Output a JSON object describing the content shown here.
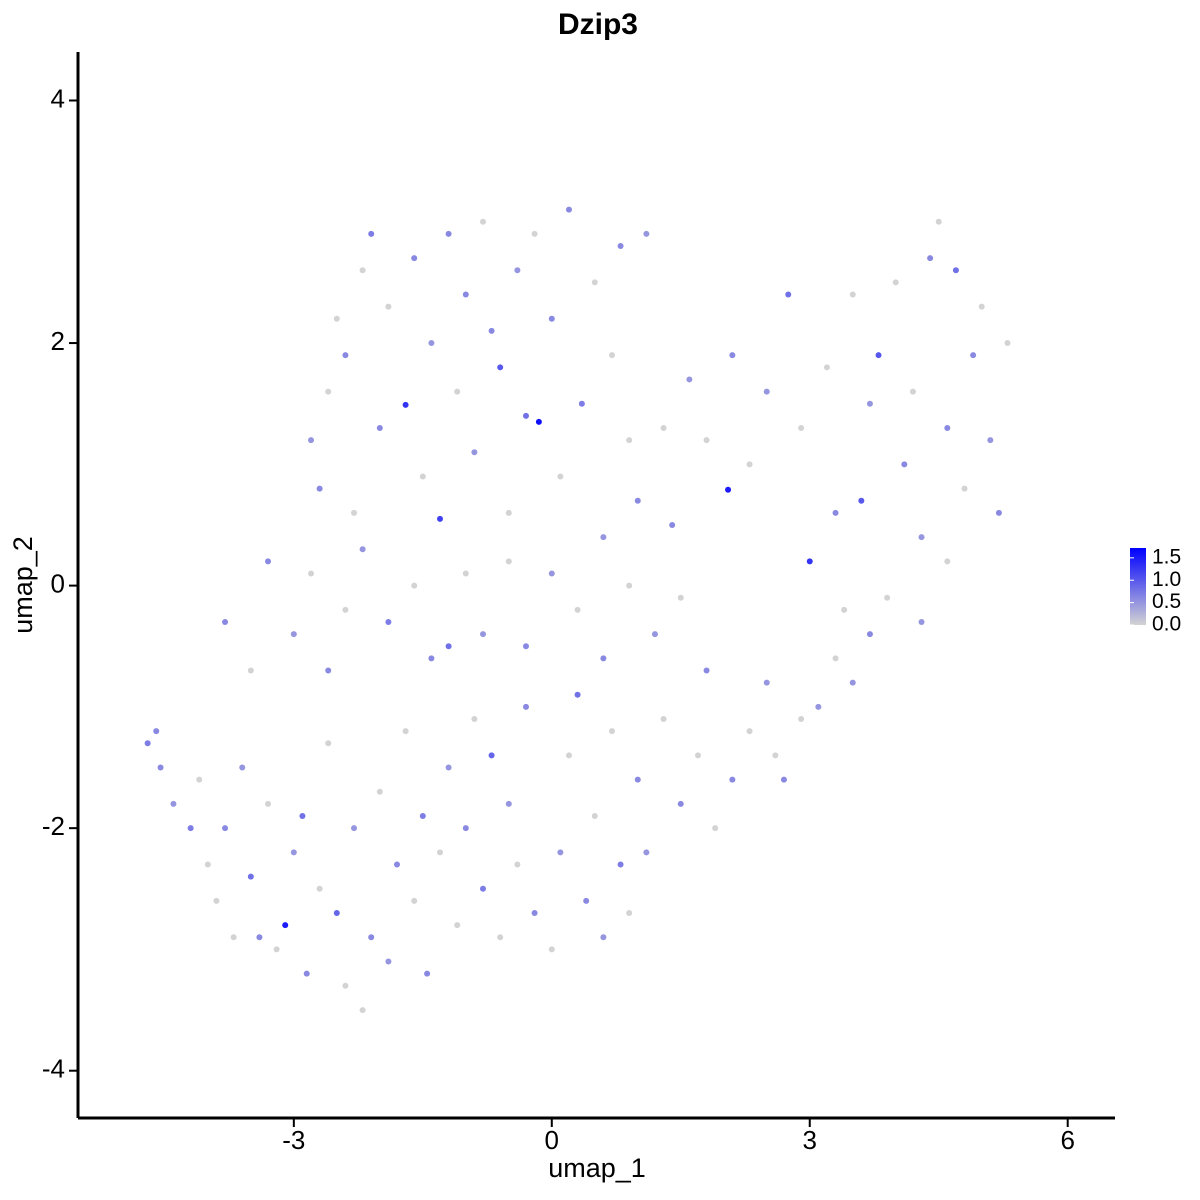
{
  "chart_data": {
    "type": "scatter",
    "title": "Dzip3",
    "x_label": "umap_1",
    "y_label": "umap_2",
    "xlim": [
      -5.51,
      6.55
    ],
    "ylim": [
      -4.39,
      4.4
    ],
    "xticks": [
      -3,
      0,
      3,
      6
    ],
    "yticks": [
      -4,
      -2,
      0,
      2,
      4
    ],
    "colorbar": {
      "lim": [
        0,
        1.72
      ],
      "colors": [
        "#d3d3d3",
        "#0000ff"
      ],
      "ticks": [
        {
          "value": 0,
          "label": "0.0"
        },
        {
          "value": 0.5,
          "label": "0.5"
        },
        {
          "value": 1,
          "label": "1.0"
        },
        {
          "value": 1.5,
          "label": "1.5"
        }
      ]
    },
    "x": [
      -4.7,
      -4.6,
      -4.55,
      -4.4,
      -4.2,
      -4.1,
      -4.0,
      -3.9,
      -3.8,
      -3.7,
      -3.6,
      -3.5,
      -3.4,
      -3.3,
      -3.2,
      -3.1,
      -3.0,
      -2.9,
      -2.85,
      -2.7,
      -2.6,
      -2.5,
      -2.4,
      -2.3,
      -2.2,
      -2.1,
      -2.0,
      -1.9,
      -1.8,
      -1.7,
      -1.6,
      -1.5,
      -1.45,
      -1.3,
      -1.2,
      -1.1,
      -1.0,
      -0.9,
      -0.8,
      -0.7,
      -0.6,
      -0.5,
      -0.4,
      -0.3,
      -0.2,
      0.0,
      0.1,
      0.2,
      0.3,
      0.4,
      0.5,
      0.6,
      0.7,
      0.8,
      0.9,
      1.0,
      1.1,
      1.3,
      1.5,
      1.7,
      1.9,
      2.1,
      2.3,
      2.5,
      2.6,
      2.7,
      2.9,
      3.1,
      3.3,
      3.5,
      3.7,
      -3.8,
      -3.5,
      -3.3,
      -3.0,
      -2.8,
      -2.6,
      -2.4,
      -2.2,
      -1.9,
      -1.6,
      -1.4,
      -1.2,
      -1.0,
      -0.8,
      -0.5,
      -0.3,
      0.0,
      0.3,
      0.6,
      0.9,
      1.2,
      1.5,
      1.8,
      -2.8,
      -2.7,
      -2.6,
      -2.5,
      -2.4,
      -2.3,
      -2.2,
      -2.1,
      -2.0,
      -1.9,
      -1.7,
      -1.6,
      -1.5,
      -1.4,
      -1.3,
      -1.2,
      -1.1,
      -1.0,
      -0.9,
      -0.8,
      -0.7,
      -0.6,
      -0.5,
      -0.4,
      -0.3,
      -0.2,
      -0.15,
      0.0,
      0.1,
      0.2,
      0.35,
      0.5,
      0.6,
      0.7,
      0.8,
      0.9,
      1.0,
      1.1,
      1.3,
      1.4,
      1.6,
      1.8,
      2.05,
      2.1,
      2.3,
      2.5,
      2.75,
      2.9,
      3.0,
      3.2,
      3.3,
      3.5,
      3.6,
      3.7,
      3.8,
      3.9,
      4.0,
      4.1,
      4.2,
      4.3,
      4.4,
      4.5,
      4.6,
      4.7,
      4.8,
      4.9,
      5.0,
      5.1,
      5.2,
      5.3,
      4.6,
      4.3,
      3.4
    ],
    "y": [
      -1.3,
      -1.2,
      -1.5,
      -1.8,
      -2.0,
      -1.6,
      -2.3,
      -2.6,
      -2.0,
      -2.9,
      -1.5,
      -2.4,
      -2.9,
      -1.8,
      -3.0,
      -2.8,
      -2.2,
      -1.9,
      -3.2,
      -2.5,
      -1.3,
      -2.7,
      -3.3,
      -2.0,
      -3.5,
      -2.9,
      -1.7,
      -3.1,
      -2.3,
      -1.2,
      -2.6,
      -1.9,
      -3.2,
      -2.2,
      -1.5,
      -2.8,
      -2.0,
      -1.1,
      -2.5,
      -1.4,
      -2.9,
      -1.8,
      -2.3,
      -1.0,
      -2.7,
      -3.0,
      -2.2,
      -1.4,
      -0.9,
      -2.6,
      -1.9,
      -2.9,
      -1.2,
      -2.3,
      -2.7,
      -1.6,
      -2.2,
      -1.1,
      -1.8,
      -1.4,
      -2.0,
      -1.6,
      -1.2,
      -0.8,
      -1.4,
      -1.6,
      -1.1,
      -1.0,
      -0.6,
      -0.8,
      -0.4,
      -0.3,
      -0.7,
      0.2,
      -0.4,
      0.1,
      -0.7,
      -0.2,
      0.3,
      -0.3,
      0.0,
      -0.6,
      -0.5,
      0.1,
      -0.4,
      0.2,
      -0.5,
      0.1,
      -0.2,
      -0.6,
      0.0,
      -0.4,
      -0.1,
      -0.7,
      1.2,
      0.8,
      1.6,
      2.2,
      1.9,
      0.6,
      2.6,
      2.9,
      1.3,
      2.3,
      1.49,
      2.7,
      0.9,
      2.0,
      0.55,
      2.9,
      1.6,
      2.4,
      1.1,
      3.0,
      2.1,
      1.8,
      0.6,
      2.6,
      1.4,
      2.9,
      1.35,
      2.2,
      0.9,
      3.1,
      1.5,
      2.5,
      0.4,
      1.9,
      2.8,
      1.2,
      0.7,
      2.9,
      1.3,
      0.5,
      1.7,
      1.2,
      0.79,
      1.9,
      1.0,
      1.6,
      2.4,
      1.3,
      0.2,
      1.8,
      0.6,
      2.4,
      0.7,
      1.5,
      1.9,
      -0.1,
      2.5,
      1.0,
      1.6,
      0.4,
      2.7,
      3.0,
      1.3,
      2.6,
      0.8,
      1.9,
      2.3,
      1.2,
      0.6,
      2.0,
      0.2,
      -0.3,
      -0.2
    ],
    "values": [
      0.7,
      0.6,
      0.6,
      0.5,
      0.7,
      0,
      0,
      0,
      0.6,
      0,
      0.5,
      0.8,
      0.6,
      0,
      0,
      1.5,
      0.5,
      0.8,
      0.6,
      0,
      0,
      0.9,
      0,
      0.5,
      0,
      0.6,
      0,
      0.5,
      0.6,
      0,
      0,
      0.7,
      0.6,
      0,
      0.5,
      0,
      0.6,
      0,
      0.7,
      0.9,
      0,
      0.5,
      0,
      0.6,
      0.6,
      0,
      0.5,
      0,
      0.8,
      0.6,
      0,
      0.5,
      0,
      0.7,
      0,
      0.6,
      0.5,
      0,
      0.6,
      0,
      0,
      0.6,
      0,
      0.5,
      0,
      0.6,
      0,
      0.5,
      0,
      0.5,
      0.6,
      0.6,
      0,
      0.6,
      0.5,
      0,
      0.6,
      0,
      0.5,
      0.7,
      0,
      0.6,
      0.8,
      0,
      0.5,
      0,
      0.6,
      0.5,
      0,
      0.6,
      0,
      0.5,
      0,
      0.6,
      0.5,
      0.6,
      0,
      0,
      0.6,
      0,
      0,
      0.7,
      0.6,
      0,
      1.3,
      0.6,
      0,
      0.5,
      1.2,
      0.6,
      0,
      0.6,
      0.5,
      0,
      0.6,
      1.0,
      0,
      0.5,
      0.8,
      0,
      1.6,
      0.6,
      0,
      0.6,
      0.7,
      0,
      0.5,
      0,
      0.6,
      0,
      0.6,
      0.5,
      0,
      0.6,
      0.5,
      0,
      1.5,
      0.6,
      0,
      0.5,
      0.8,
      0,
      1.3,
      0,
      0.6,
      0,
      1.0,
      0.5,
      1.0,
      0,
      0,
      0.6,
      0,
      0.5,
      0.6,
      0,
      0.6,
      0.8,
      0,
      0.6,
      0,
      0.5,
      0.6,
      0,
      0,
      0.5,
      0
    ]
  }
}
